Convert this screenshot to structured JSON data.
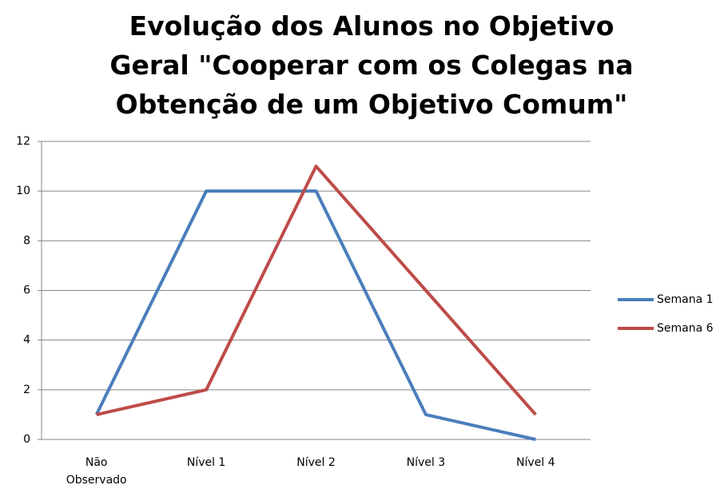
{
  "chart_data": {
    "type": "line",
    "title": "Evolução dos Alunos no Objetivo Geral \"Cooperar com os Colegas na Obtenção de um Objetivo Comum\"",
    "categories": [
      "Não Observado",
      "Nível 1",
      "Nível 2",
      "Nível 3",
      "Nível 4"
    ],
    "series": [
      {
        "name": "Semana 1",
        "color": "#4a7ebb",
        "values": [
          1,
          10,
          10,
          1,
          0
        ]
      },
      {
        "name": "Semana 6",
        "color": "#be4b48",
        "values": [
          1,
          2,
          11,
          6,
          1
        ]
      }
    ],
    "ylim": [
      0,
      12
    ],
    "yticks": [
      0,
      2,
      4,
      6,
      8,
      10,
      12
    ],
    "grid": true,
    "legend": "right"
  }
}
